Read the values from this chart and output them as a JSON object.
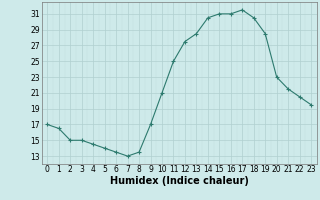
{
  "x": [
    0,
    1,
    2,
    3,
    4,
    5,
    6,
    7,
    8,
    9,
    10,
    11,
    12,
    13,
    14,
    15,
    16,
    17,
    18,
    19,
    20,
    21,
    22,
    23
  ],
  "y": [
    17,
    16.5,
    15,
    15,
    14.5,
    14,
    13.5,
    13,
    13.5,
    17,
    21,
    25,
    27.5,
    28.5,
    30.5,
    31,
    31,
    31.5,
    30.5,
    28.5,
    23,
    21.5,
    20.5,
    19.5
  ],
  "xlabel": "Humidex (Indice chaleur)",
  "xlim": [
    -0.5,
    23.5
  ],
  "ylim": [
    12.0,
    32.5
  ],
  "yticks": [
    13,
    15,
    17,
    19,
    21,
    23,
    25,
    27,
    29,
    31
  ],
  "xticks": [
    0,
    1,
    2,
    3,
    4,
    5,
    6,
    7,
    8,
    9,
    10,
    11,
    12,
    13,
    14,
    15,
    16,
    17,
    18,
    19,
    20,
    21,
    22,
    23
  ],
  "line_color": "#2d7a6e",
  "bg_color": "#ceeaea",
  "grid_major_color": "#b0d0d0",
  "grid_minor_color": "#c2e0e0",
  "tick_fontsize": 5.5,
  "label_fontsize": 7
}
